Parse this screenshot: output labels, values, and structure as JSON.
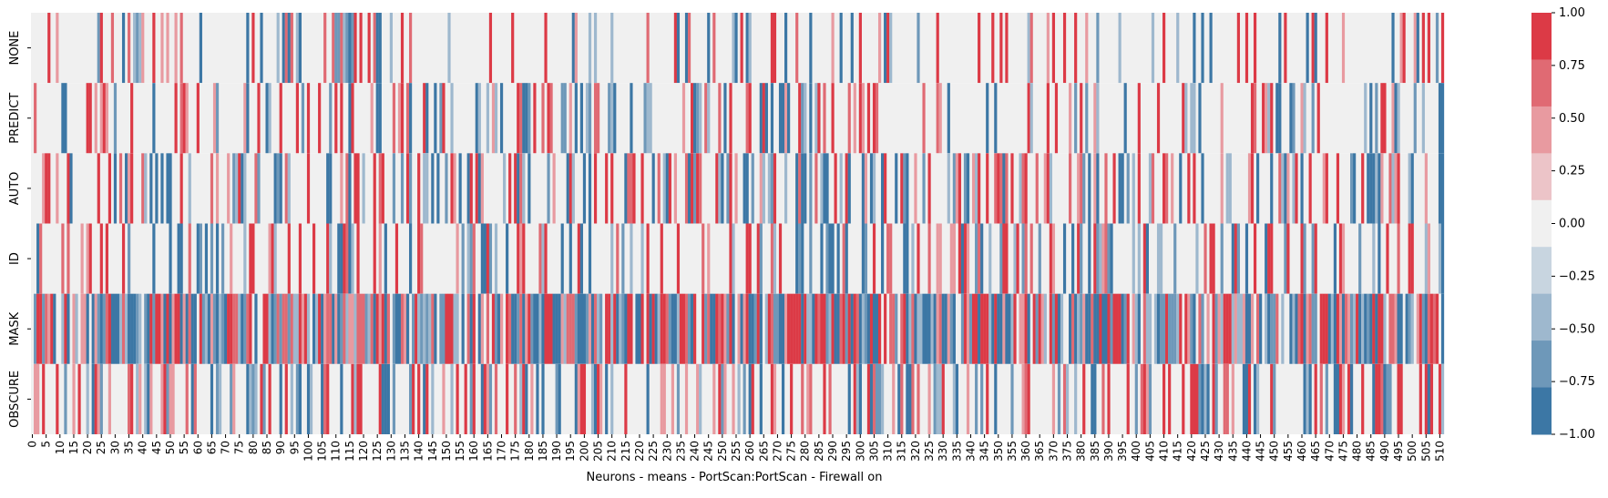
{
  "chart_data": {
    "type": "heatmap",
    "title": "",
    "xlabel": "Neurons - means - PortScan:PortScan - Firewall on",
    "ylabel": "",
    "rows": [
      "NONE",
      "PREDICT",
      "AUTO",
      "ID",
      "MASK",
      "OBSCURE"
    ],
    "n_columns": 512,
    "x_tick_labels": [
      "0",
      "5",
      "10",
      "15",
      "20",
      "25",
      "30",
      "35",
      "40",
      "45",
      "50",
      "55",
      "60",
      "65",
      "70",
      "75",
      "80",
      "85",
      "90",
      "95",
      "100",
      "105",
      "110",
      "115",
      "120",
      "125",
      "130",
      "135",
      "140",
      "145",
      "150",
      "155",
      "160",
      "165",
      "170",
      "175",
      "180",
      "185",
      "190",
      "195",
      "200",
      "205",
      "210",
      "215",
      "220",
      "225",
      "230",
      "235",
      "240",
      "245",
      "250",
      "255",
      "260",
      "265",
      "270",
      "275",
      "280",
      "285",
      "290",
      "295",
      "300",
      "305",
      "310",
      "315",
      "320",
      "325",
      "330",
      "335",
      "340",
      "345",
      "350",
      "355",
      "360",
      "365",
      "370",
      "375",
      "380",
      "385",
      "390",
      "395",
      "400",
      "405",
      "410",
      "415",
      "420",
      "425",
      "430",
      "435",
      "440",
      "445",
      "450",
      "455",
      "460",
      "465",
      "470",
      "475",
      "480",
      "485",
      "490",
      "495",
      "500",
      "505",
      "510"
    ],
    "value_range": [
      -1.0,
      1.0
    ],
    "color_levels": 8,
    "colorbar_ticks": [
      "1.00",
      "0.75",
      "0.50",
      "0.25",
      "0.00",
      "−0.25",
      "−0.50",
      "−0.75",
      "−1.00"
    ],
    "colormap": {
      "negative": "#3c77a5",
      "neutral": "#f2f2f2",
      "positive": "#dc3a46",
      "bins": [
        "#3c77a5",
        "#6e98b9",
        "#9eb8ce",
        "#c8d5e0",
        "#f0f0f0",
        "#ecc4c8",
        "#e89aa0",
        "#e06a73",
        "#dc3a46"
      ]
    },
    "cells_note_values": "values per row are sparse; most cells near 0.00, approximated pattern",
    "row_density": {
      "NONE": 0.22,
      "PREDICT": 0.28,
      "AUTO": 0.42,
      "ID": 0.36,
      "MASK": 0.88,
      "OBSCURE": 0.4
    },
    "sample_highlights": {
      "NONE": [
        [
          6,
          0.9
        ],
        [
          25,
          1.0
        ],
        [
          110,
          -0.5
        ],
        [
          114,
          -0.6
        ],
        [
          386,
          -0.7
        ],
        [
          440,
          1.0
        ],
        [
          511,
          1.0
        ]
      ],
      "PREDICT": [
        [
          12,
          -0.9
        ],
        [
          44,
          -1.0
        ],
        [
          264,
          -1.0
        ],
        [
          282,
          -1.0
        ],
        [
          408,
          0.9
        ],
        [
          452,
          -0.8
        ]
      ],
      "AUTO": [
        [
          28,
          1.0
        ],
        [
          75,
          1.0
        ],
        [
          180,
          -1.0
        ],
        [
          200,
          -1.0
        ],
        [
          355,
          0.9
        ],
        [
          500,
          -0.8
        ]
      ],
      "ID": [
        [
          60,
          -1.0
        ],
        [
          97,
          1.0
        ],
        [
          124,
          1.0
        ],
        [
          163,
          -1.0
        ],
        [
          455,
          1.0
        ],
        [
          511,
          -1.0
        ]
      ],
      "MASK": [
        [
          145,
          0.6
        ],
        [
          200,
          -0.9
        ],
        [
          300,
          -1.0
        ],
        [
          360,
          1.0
        ],
        [
          418,
          1.0
        ],
        [
          505,
          -0.9
        ]
      ],
      "OBSCURE": [
        [
          200,
          1.0
        ],
        [
          205,
          0.9
        ],
        [
          300,
          -1.0
        ],
        [
          303,
          1.0
        ],
        [
          503,
          1.0
        ],
        [
          510,
          1.0
        ]
      ]
    }
  }
}
